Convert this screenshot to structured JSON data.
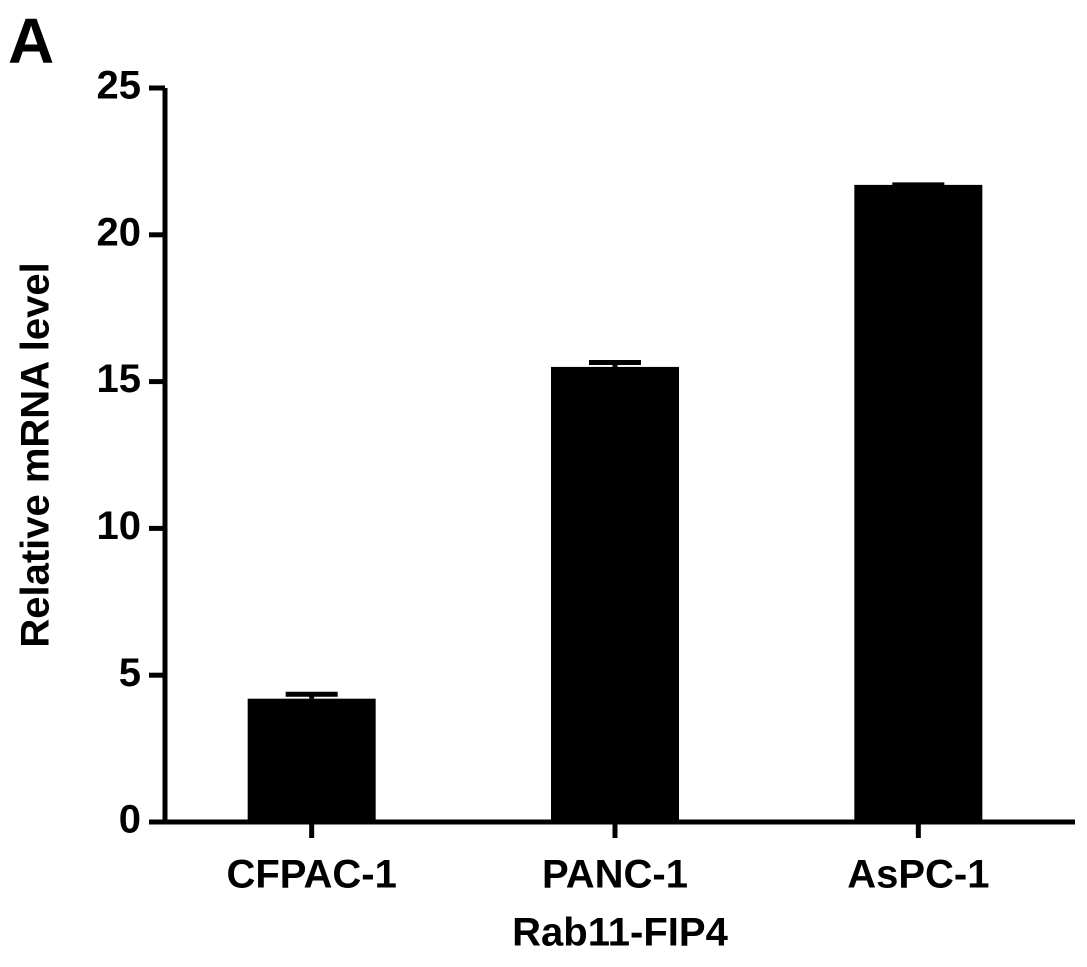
{
  "chart_data": {
    "type": "bar",
    "panel_label": "A",
    "x_label": "Rab11-FIP4",
    "y_label": "Relative mRNA level",
    "categories": [
      "CFPAC-1",
      "PANC-1",
      "AsPC-1"
    ],
    "values": [
      4.2,
      15.5,
      21.7
    ],
    "errors": [
      0.15,
      0.15,
      0
    ],
    "color": "#000000",
    "ylim": [
      0,
      25
    ],
    "yticks": [
      0,
      5,
      10,
      15,
      20,
      25
    ],
    "grid": false
  }
}
